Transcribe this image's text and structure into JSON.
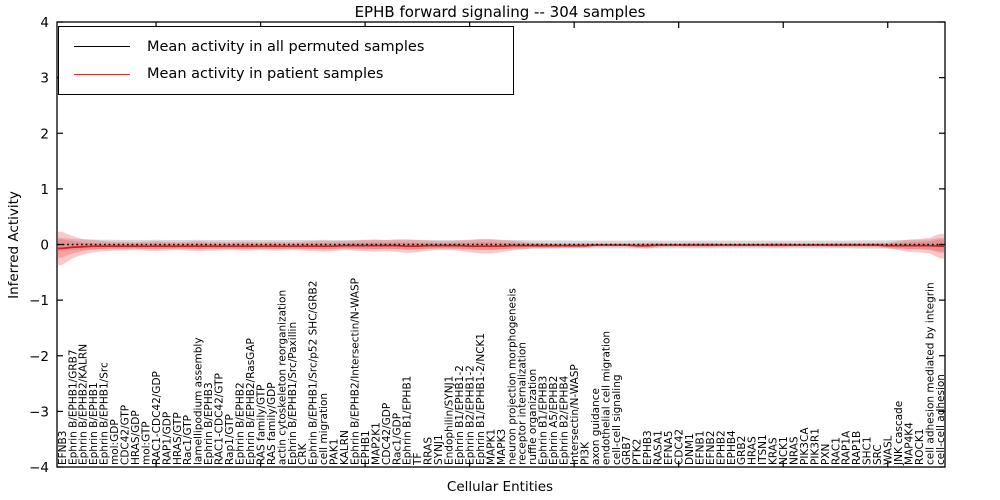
{
  "chart_data": {
    "type": "line",
    "title": "EPHB forward signaling -- 304 samples",
    "xlabel": "Cellular Entities",
    "ylabel": "Inferred Activity",
    "ylim": [
      -4,
      4
    ],
    "yticks": [
      -4,
      -3,
      -2,
      -1,
      0,
      1,
      2,
      3,
      4
    ],
    "grid": false,
    "legend": {
      "position": "upper left",
      "entries": [
        {
          "label": "Mean activity in all permuted samples",
          "color": "#000000"
        },
        {
          "label": "Mean activity in patient samples",
          "color": "#e32626"
        }
      ]
    },
    "top_tick_indices": [
      9,
      19,
      29,
      39,
      49,
      59,
      69,
      79
    ],
    "categories": [
      "EFNB3",
      "Ephrin B/EPHB1/GRB7",
      "Ephrin B/EPHB2/KALRN",
      "Ephrin B/EPHB1",
      "Ephrin B/EPHB1/Src",
      "mol:GDP",
      "CDC42/GTP",
      "HRAS/GDP",
      "mol:GTP",
      "RAC1-CDC42/GDP",
      "RAP1/GDP",
      "HRAS/GTP",
      "Rac1/GTP",
      "lamellipodium assembly",
      "Ephrin B/EPHB3",
      "RAC1-CDC42/GTP",
      "Rap1/GTP",
      "Ephrin B/EPHB2",
      "Ephrin B/EPHB2/RasGAP",
      "RAS family/GTP",
      "RAS family/GDP",
      "actin cytoskeleton reorganization",
      "Ephrin B/EPHB1/Src/Paxillin",
      "CRK",
      "Ephrin B/EPHB1/Src/p52 SHC/GRB2",
      "cell migration",
      "PAK1",
      "KALRN",
      "Ephrin B/EPHB2/Intersectin/N-WASP",
      "EPHB1",
      "MAP2K1",
      "CDC42/GDP",
      "Rac1/GDP",
      "Ephrin B1/EPHB1",
      "TF",
      "RRAS",
      "SYNJ1",
      "Endophilin/SYNJ1",
      "Ephrin B1/EPHB1-2",
      "Ephrin B2/EPHB1-2",
      "Ephrin B1/EPHB1-2/NCK1",
      "MAPK1",
      "MAPK3",
      "neuron projection morphogenesis",
      "receptor internalization",
      "ruffle organization",
      "Ephrin B1/EPHB3",
      "Ephrin A5/EPHB2",
      "Ephrin B2/EPHB4",
      "Intersectin/N-WASP",
      "PI3K",
      "axon guidance",
      "endothelial cell migration",
      "cell-cell signaling",
      "GRB7",
      "PTK2",
      "EPHB3",
      "RASA1",
      "EFNA5",
      "CDC42",
      "DNM1",
      "EFNB1",
      "EFNB2",
      "EPHB2",
      "EPHB4",
      "GRB2",
      "HRAS",
      "ITSN1",
      "KRAS",
      "NCK1",
      "NRAS",
      "PIK3CA",
      "PIK3R1",
      "PXN",
      "RAC1",
      "RAP1A",
      "RAP1B",
      "SHC1",
      "SRC",
      "WASL",
      "JNK cascade",
      "MAP4K4",
      "ROCK1",
      "cell adhesion mediated by integrin",
      "cell-cell adhesion"
    ],
    "series": [
      {
        "name": "Mean activity in all permuted samples",
        "color": "#000000",
        "style": "dotted",
        "width": 1.6,
        "values": [
          0,
          0,
          0,
          0,
          0,
          0,
          0,
          0,
          0,
          0,
          0,
          0,
          0,
          0,
          0,
          0,
          0,
          0,
          0,
          0,
          0,
          0,
          0,
          0,
          0,
          0,
          0,
          0,
          0,
          0,
          0,
          0,
          0,
          0,
          0,
          0,
          0,
          0,
          0,
          0,
          0,
          0,
          0,
          0,
          0,
          0,
          0,
          0,
          0,
          0,
          0,
          0,
          0,
          0,
          0,
          0,
          0,
          0,
          0,
          0,
          0,
          0,
          0,
          0,
          0,
          0,
          0,
          0,
          0,
          0,
          0,
          0,
          0,
          0,
          0,
          0,
          0,
          0,
          0,
          0,
          0,
          0,
          0,
          0,
          0
        ]
      },
      {
        "name": "Mean activity in patient samples",
        "color": "#cc1f1f",
        "style": "solid",
        "width": 1.7,
        "values": [
          -0.07,
          -0.05,
          -0.04,
          -0.03,
          -0.03,
          -0.03,
          -0.03,
          -0.03,
          -0.03,
          -0.03,
          -0.03,
          -0.03,
          -0.03,
          -0.03,
          -0.03,
          -0.03,
          -0.03,
          -0.03,
          -0.03,
          -0.03,
          -0.03,
          -0.03,
          -0.03,
          -0.03,
          -0.03,
          -0.03,
          -0.03,
          -0.02,
          -0.02,
          -0.02,
          -0.02,
          -0.02,
          -0.02,
          -0.03,
          -0.03,
          -0.02,
          -0.02,
          -0.02,
          -0.02,
          -0.03,
          -0.03,
          -0.03,
          -0.03,
          -0.02,
          -0.02,
          -0.02,
          -0.02,
          -0.02,
          -0.02,
          -0.02,
          -0.02,
          -0.01,
          -0.01,
          -0.01,
          -0.01,
          -0.02,
          -0.02,
          -0.01,
          -0.01,
          -0.01,
          -0.01,
          -0.01,
          -0.01,
          -0.01,
          -0.01,
          -0.01,
          -0.01,
          -0.01,
          -0.01,
          -0.01,
          -0.01,
          -0.01,
          -0.01,
          -0.01,
          -0.01,
          -0.01,
          -0.01,
          -0.01,
          -0.01,
          -0.02,
          -0.02,
          -0.02,
          -0.02,
          -0.02,
          -0.03
        ]
      }
    ],
    "bands": [
      {
        "name": "permuted-range",
        "color": "#a8a8a8",
        "opacity": 0.42,
        "center": "permuted",
        "inner_scale": 0,
        "halfwidths": [
          0.12,
          0.1,
          0.09,
          0.09,
          0.085,
          0.085,
          0.08,
          0.08,
          0.08,
          0.085,
          0.08,
          0.08,
          0.08,
          0.085,
          0.08,
          0.08,
          0.08,
          0.08,
          0.08,
          0.08,
          0.08,
          0.08,
          0.08,
          0.08,
          0.08,
          0.085,
          0.08,
          0.08,
          0.08,
          0.085,
          0.085,
          0.08,
          0.085,
          0.09,
          0.085,
          0.08,
          0.08,
          0.08,
          0.08,
          0.085,
          0.09,
          0.09,
          0.085,
          0.08,
          0.08,
          0.075,
          0.075,
          0.075,
          0.075,
          0.07,
          0.07,
          0.07,
          0.07,
          0.07,
          0.07,
          0.075,
          0.075,
          0.07,
          0.07,
          0.07,
          0.07,
          0.07,
          0.07,
          0.07,
          0.07,
          0.07,
          0.07,
          0.07,
          0.07,
          0.07,
          0.07,
          0.07,
          0.07,
          0.07,
          0.07,
          0.07,
          0.075,
          0.075,
          0.075,
          0.075,
          0.08,
          0.08,
          0.085,
          0.09,
          0.12
        ]
      },
      {
        "name": "patient-range",
        "color": "#f05555",
        "opacity": 0.32,
        "center": "patient",
        "inner_scale": 0.55,
        "halfwidths": [
          0.3,
          0.2,
          0.14,
          0.11,
          0.09,
          0.08,
          0.08,
          0.07,
          0.08,
          0.09,
          0.08,
          0.07,
          0.08,
          0.09,
          0.08,
          0.08,
          0.07,
          0.08,
          0.08,
          0.07,
          0.08,
          0.08,
          0.07,
          0.08,
          0.09,
          0.1,
          0.09,
          0.08,
          0.09,
          0.1,
          0.11,
          0.1,
          0.11,
          0.12,
          0.11,
          0.09,
          0.08,
          0.08,
          0.09,
          0.11,
          0.13,
          0.13,
          0.11,
          0.09,
          0.07,
          0.05,
          0.05,
          0.04,
          0.04,
          0.04,
          0.04,
          0.03,
          0.03,
          0.03,
          0.03,
          0.04,
          0.05,
          0.04,
          0.03,
          0.03,
          0.04,
          0.04,
          0.04,
          0.03,
          0.03,
          0.03,
          0.03,
          0.03,
          0.04,
          0.04,
          0.03,
          0.03,
          0.03,
          0.03,
          0.04,
          0.04,
          0.04,
          0.04,
          0.04,
          0.05,
          0.08,
          0.11,
          0.12,
          0.14,
          0.22
        ]
      }
    ]
  }
}
